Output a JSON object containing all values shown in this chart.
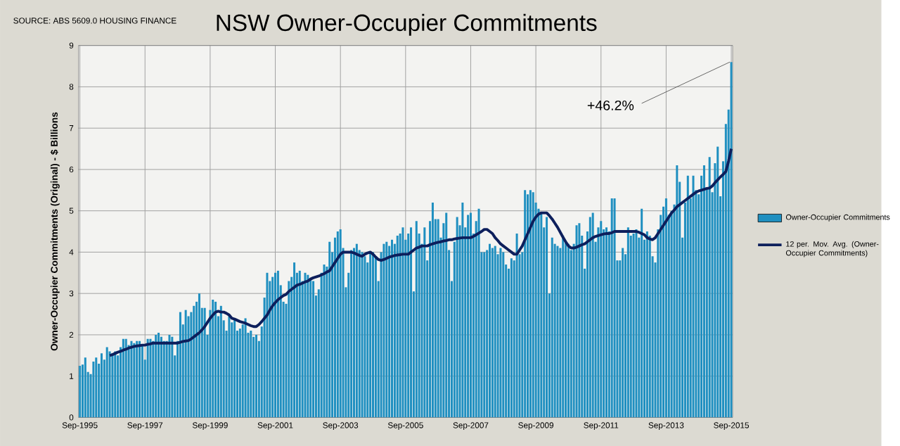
{
  "chart_data": {
    "type": "bar",
    "title": "NSW Owner-Occupier Commitments",
    "ylabel": "Owner-Occupier Commitments (Original) - $ Billions",
    "annotations": [
      "SOURCE: ABS 5609.0 HOUSING FINANCE",
      {
        "text": "+46.2%",
        "x": "Sep-2015",
        "y": 8.6
      }
    ],
    "categories": [
      "Sep-1995",
      null,
      null,
      null,
      null,
      null,
      null,
      null,
      null,
      null,
      null,
      null,
      null,
      null,
      null,
      null,
      null,
      null,
      null,
      null,
      null,
      null,
      null,
      null,
      "Sep-1997",
      null,
      null,
      null,
      null,
      null,
      null,
      null,
      null,
      null,
      null,
      null,
      null,
      null,
      null,
      null,
      null,
      null,
      null,
      null,
      null,
      null,
      null,
      null,
      "Sep-1999",
      null,
      null,
      null,
      null,
      null,
      null,
      null,
      null,
      null,
      null,
      null,
      null,
      null,
      null,
      null,
      null,
      null,
      null,
      null,
      null,
      null,
      null,
      null,
      "Sep-2001",
      null,
      null,
      null,
      null,
      null,
      null,
      null,
      null,
      null,
      null,
      null,
      null,
      null,
      null,
      null,
      null,
      null,
      null,
      null,
      null,
      null,
      null,
      null,
      "Sep-2003",
      null,
      null,
      null,
      null,
      null,
      null,
      null,
      null,
      null,
      null,
      null,
      null,
      null,
      null,
      null,
      null,
      null,
      null,
      null,
      null,
      null,
      null,
      null,
      "Sep-2005",
      null,
      null,
      null,
      null,
      null,
      null,
      null,
      null,
      null,
      null,
      null,
      null,
      null,
      null,
      null,
      null,
      null,
      null,
      null,
      null,
      null,
      null,
      null,
      "Sep-2007",
      null,
      null,
      null,
      null,
      null,
      null,
      null,
      null,
      null,
      null,
      null,
      null,
      null,
      null,
      null,
      null,
      null,
      null,
      null,
      null,
      null,
      null,
      null,
      "Sep-2009",
      null,
      null,
      null,
      null,
      null,
      null,
      null,
      null,
      null,
      null,
      null,
      null,
      null,
      null,
      null,
      null,
      null,
      null,
      null,
      null,
      null,
      null,
      null,
      "Sep-2011",
      null,
      null,
      null,
      null,
      null,
      null,
      null,
      null,
      null,
      null,
      null,
      null,
      null,
      null,
      null,
      null,
      null,
      null,
      null,
      null,
      null,
      null,
      null,
      "Sep-2013",
      null,
      null,
      null,
      null,
      null,
      null,
      null,
      null,
      null,
      null,
      null,
      null,
      null,
      null,
      null,
      null,
      null,
      null,
      null,
      null,
      null,
      null,
      null,
      "Sep-2015"
    ],
    "series": [
      {
        "name": "Owner-Occupier Commitments",
        "color": "#1f8fc0",
        "values": [
          1.25,
          1.28,
          1.45,
          1.1,
          1.05,
          1.35,
          1.45,
          1.3,
          1.55,
          1.4,
          1.7,
          1.6,
          1.55,
          1.6,
          1.5,
          1.7,
          1.9,
          1.9,
          1.75,
          1.85,
          1.8,
          1.85,
          1.85,
          1.75,
          1.4,
          1.9,
          1.9,
          1.85,
          2.0,
          2.05,
          1.95,
          1.85,
          1.85,
          2.0,
          1.95,
          1.5,
          1.85,
          2.55,
          2.25,
          2.6,
          2.45,
          2.55,
          2.7,
          2.8,
          3.0,
          2.65,
          2.65,
          2.0,
          2.6,
          2.85,
          2.8,
          2.45,
          2.7,
          2.35,
          2.1,
          2.45,
          2.3,
          2.4,
          2.1,
          2.15,
          2.25,
          2.4,
          2.05,
          2.1,
          1.95,
          2.0,
          1.85,
          2.2,
          2.9,
          3.5,
          3.3,
          3.4,
          3.5,
          3.55,
          3.2,
          2.8,
          2.75,
          3.3,
          3.4,
          3.75,
          3.5,
          3.55,
          3.3,
          3.5,
          3.45,
          3.35,
          3.3,
          2.95,
          3.1,
          3.5,
          3.7,
          3.65,
          4.25,
          4.0,
          4.35,
          4.5,
          4.55,
          4.1,
          3.15,
          3.5,
          4.05,
          4.1,
          4.2,
          4.05,
          4.0,
          3.9,
          3.75,
          4.0,
          4.0,
          3.9,
          3.3,
          4.0,
          4.2,
          4.25,
          4.15,
          4.3,
          4.2,
          4.4,
          4.45,
          4.6,
          4.3,
          4.45,
          4.6,
          3.05,
          4.75,
          4.45,
          4.2,
          4.6,
          3.8,
          4.75,
          5.2,
          4.8,
          4.8,
          4.35,
          4.7,
          4.95,
          4.05,
          3.3,
          4.25,
          4.85,
          4.65,
          5.2,
          4.6,
          4.9,
          4.95,
          4.45,
          4.75,
          5.05,
          4.0,
          4.0,
          4.05,
          4.2,
          4.1,
          4.15,
          3.95,
          4.1,
          4.0,
          3.7,
          3.6,
          3.85,
          3.8,
          4.45,
          3.95,
          4.0,
          5.5,
          5.4,
          5.5,
          5.45,
          5.2,
          5.05,
          4.95,
          4.6,
          4.85,
          3.0,
          4.35,
          4.2,
          4.15,
          4.1,
          4.4,
          4.25,
          4.2,
          4.05,
          4.2,
          4.65,
          4.7,
          4.4,
          3.6,
          4.5,
          4.85,
          4.95,
          4.25,
          4.6,
          4.75,
          4.55,
          4.6,
          4.5,
          5.3,
          5.3,
          3.8,
          3.8,
          4.1,
          3.95,
          4.6,
          4.4,
          4.45,
          4.55,
          4.35,
          5.05,
          4.3,
          4.5,
          4.4,
          3.9,
          3.75,
          4.55,
          4.9,
          5.1,
          5.3,
          4.9,
          5.0,
          5.15,
          6.1,
          5.7,
          4.35,
          5.2,
          5.85,
          5.3,
          5.85,
          5.5,
          5.4,
          5.85,
          6.1,
          5.55,
          6.3,
          5.45,
          6.15,
          6.55,
          5.35,
          6.2,
          7.1,
          7.45,
          8.6
        ]
      },
      {
        "name": "12 per. Mov. Avg. (Owner-Occupier Commitments)",
        "type": "line",
        "color": "#0d1f5c",
        "values": [
          null,
          null,
          null,
          null,
          null,
          null,
          null,
          null,
          null,
          null,
          null,
          1.5,
          1.52,
          1.55,
          1.58,
          1.6,
          1.63,
          1.65,
          1.68,
          1.7,
          1.72,
          1.73,
          1.74,
          1.75,
          1.75,
          1.77,
          1.78,
          1.8,
          1.8,
          1.8,
          1.8,
          1.8,
          1.8,
          1.8,
          1.8,
          1.8,
          1.8,
          1.82,
          1.84,
          1.85,
          1.86,
          1.9,
          1.95,
          2.0,
          2.05,
          2.12,
          2.2,
          2.3,
          2.4,
          2.48,
          2.55,
          2.57,
          2.55,
          2.55,
          2.52,
          2.48,
          2.4,
          2.38,
          2.35,
          2.32,
          2.3,
          2.28,
          2.25,
          2.22,
          2.2,
          2.2,
          2.25,
          2.32,
          2.4,
          2.48,
          2.6,
          2.7,
          2.78,
          2.85,
          2.9,
          2.95,
          2.98,
          3.05,
          3.1,
          3.15,
          3.2,
          3.22,
          3.25,
          3.28,
          3.3,
          3.35,
          3.38,
          3.4,
          3.42,
          3.45,
          3.48,
          3.52,
          3.55,
          3.65,
          3.75,
          3.85,
          3.95,
          4.0,
          4.0,
          4.0,
          4.0,
          3.98,
          3.95,
          3.92,
          3.9,
          3.95,
          3.98,
          4.0,
          3.95,
          3.88,
          3.82,
          3.8,
          3.82,
          3.85,
          3.88,
          3.9,
          3.92,
          3.93,
          3.94,
          3.95,
          3.95,
          3.95,
          4.0,
          4.05,
          4.1,
          4.12,
          4.15,
          4.15,
          4.15,
          4.18,
          4.2,
          4.22,
          4.24,
          4.25,
          4.27,
          4.28,
          4.3,
          4.3,
          4.32,
          4.33,
          4.34,
          4.35,
          4.35,
          4.35,
          4.35,
          4.38,
          4.42,
          4.46,
          4.5,
          4.55,
          4.55,
          4.5,
          4.45,
          4.35,
          4.28,
          4.2,
          4.15,
          4.1,
          4.05,
          4.0,
          3.95,
          3.95,
          4.05,
          4.15,
          4.3,
          4.45,
          4.6,
          4.75,
          4.85,
          4.92,
          4.95,
          4.95,
          4.95,
          4.88,
          4.8,
          4.7,
          4.6,
          4.48,
          4.36,
          4.25,
          4.15,
          4.1,
          4.1,
          4.12,
          4.15,
          4.18,
          4.2,
          4.25,
          4.3,
          4.35,
          4.38,
          4.4,
          4.42,
          4.44,
          4.45,
          4.45,
          4.47,
          4.5,
          4.5,
          4.5,
          4.5,
          4.5,
          4.5,
          4.5,
          4.5,
          4.5,
          4.48,
          4.45,
          4.42,
          4.35,
          4.32,
          4.3,
          4.35,
          4.45,
          4.55,
          4.65,
          4.75,
          4.85,
          4.95,
          5.02,
          5.1,
          5.15,
          5.2,
          5.25,
          5.3,
          5.35,
          5.4,
          5.45,
          5.48,
          5.5,
          5.52,
          5.54,
          5.55,
          5.6,
          5.68,
          5.75,
          5.82,
          5.88,
          5.95,
          6.2,
          6.5
        ]
      }
    ],
    "ylim": [
      0,
      9
    ],
    "yticks": [
      0,
      1,
      2,
      3,
      4,
      5,
      6,
      7,
      8,
      9
    ],
    "grid": true,
    "legend": "right"
  }
}
